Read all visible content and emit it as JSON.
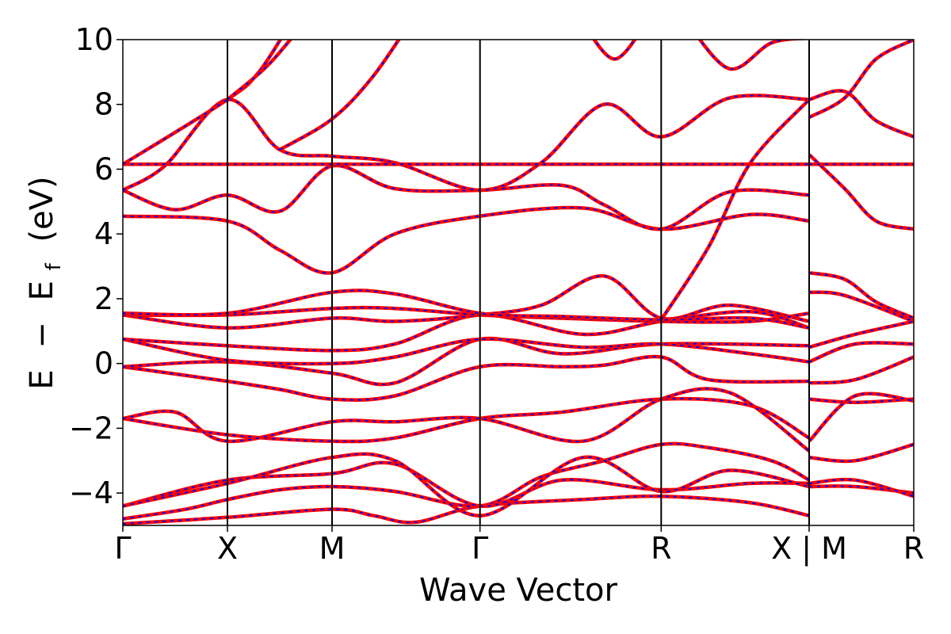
{
  "chart_data": {
    "type": "line",
    "xlabel": "Wave Vector",
    "ylabel_parts": {
      "E": "E",
      "minus": "−",
      "Ef_main": "E",
      "Ef_sub": "f",
      "unit": "(eV)"
    },
    "ylim": [
      -5,
      10
    ],
    "yticks": [
      -4,
      -2,
      0,
      2,
      4,
      6,
      8,
      10
    ],
    "ytick_labels": [
      "−4",
      "−2",
      "0",
      "2",
      "4",
      "6",
      "8",
      "10"
    ],
    "kpoints": [
      {
        "label": "Γ",
        "k": 0.0
      },
      {
        "label": "X",
        "k": 0.5
      },
      {
        "label": "M",
        "k": 1.0
      },
      {
        "label": "Γ",
        "k": 1.7071
      },
      {
        "label": "R",
        "k": 2.5731
      },
      {
        "label": "X|M",
        "k": 3.2802
      },
      {
        "label": "R",
        "k": 3.7802
      }
    ],
    "grid": false,
    "series_styles": [
      {
        "color": "#ff0000",
        "dash": "solid"
      },
      {
        "color": "#0000ff",
        "dash": "dashed"
      }
    ],
    "bands": [
      [
        [
          0,
          -4.95
        ],
        [
          0.5,
          -4.75
        ],
        [
          1.0,
          -4.5
        ],
        [
          1.2,
          -4.7
        ],
        [
          1.4,
          -4.9
        ],
        [
          1.7071,
          -4.4
        ],
        [
          2.2,
          -4.2
        ],
        [
          2.5731,
          -4.1
        ],
        [
          3.0,
          -4.3
        ],
        [
          3.2802,
          -4.7
        ]
      ],
      [
        [
          0,
          -4.8
        ],
        [
          0.3,
          -4.5
        ],
        [
          0.5,
          -4.2
        ],
        [
          0.75,
          -3.9
        ],
        [
          1.0,
          -3.8
        ],
        [
          1.3,
          -3.95
        ],
        [
          1.7071,
          -4.4
        ],
        [
          2.0,
          -3.5
        ],
        [
          2.3,
          -3.0
        ],
        [
          2.5731,
          -2.5
        ],
        [
          2.8,
          -2.6
        ],
        [
          3.1,
          -3.0
        ],
        [
          3.2802,
          -3.6
        ]
      ],
      [
        [
          0,
          -4.4
        ],
        [
          0.5,
          -3.6
        ],
        [
          1.0,
          -3.4
        ],
        [
          1.3,
          -3.1
        ],
        [
          1.7071,
          -4.4
        ],
        [
          2.1,
          -3.6
        ],
        [
          2.5731,
          -3.9
        ],
        [
          3.0,
          -3.7
        ],
        [
          3.2802,
          -3.7
        ]
      ],
      [
        [
          0,
          -4.4
        ],
        [
          0.5,
          -3.7
        ],
        [
          1.0,
          -2.9
        ],
        [
          1.3,
          -3.0
        ],
        [
          1.7071,
          -4.7
        ],
        [
          2.2,
          -2.9
        ],
        [
          2.5731,
          -3.95
        ],
        [
          2.9,
          -3.3
        ],
        [
          3.2802,
          -3.8
        ]
      ],
      [
        [
          0,
          -1.7
        ],
        [
          0.5,
          -2.2
        ],
        [
          1.0,
          -2.4
        ],
        [
          1.3,
          -2.3
        ],
        [
          1.7071,
          -1.7
        ],
        [
          2.1,
          -1.5
        ],
        [
          2.5731,
          -1.1
        ],
        [
          3.0,
          -1.3
        ],
        [
          3.2802,
          -2.3
        ]
      ],
      [
        [
          0,
          -1.7
        ],
        [
          0.25,
          -1.5
        ],
        [
          0.5,
          -2.4
        ],
        [
          1.0,
          -1.8
        ],
        [
          1.3,
          -1.8
        ],
        [
          1.7071,
          -1.7
        ],
        [
          2.2,
          -2.4
        ],
        [
          2.5731,
          -1.1
        ],
        [
          2.9,
          -0.9
        ],
        [
          3.2802,
          -2.7
        ]
      ],
      [
        [
          0,
          -0.1
        ],
        [
          0.5,
          -0.55
        ],
        [
          0.75,
          -0.8
        ],
        [
          1.0,
          -1.1
        ],
        [
          1.3,
          -1.0
        ],
        [
          1.7071,
          -0.1
        ],
        [
          2.1,
          -0.1
        ],
        [
          2.3,
          -0.05
        ],
        [
          2.5731,
          0.2
        ],
        [
          2.8,
          -0.5
        ],
        [
          3.2802,
          -0.55
        ]
      ],
      [
        [
          0,
          -0.1
        ],
        [
          0.5,
          0.05
        ],
        [
          1.0,
          -0.3
        ],
        [
          1.3,
          -0.6
        ],
        [
          1.7071,
          0.75
        ],
        [
          2.1,
          0.3
        ],
        [
          2.5731,
          0.6
        ],
        [
          3.2802,
          0.55
        ]
      ],
      [
        [
          0,
          0.75
        ],
        [
          0.5,
          0.1
        ],
        [
          1.0,
          0.0
        ],
        [
          1.3,
          0.2
        ],
        [
          1.7071,
          0.75
        ],
        [
          2.2,
          0.5
        ],
        [
          2.5731,
          0.6
        ],
        [
          3.0,
          0.3
        ],
        [
          3.2802,
          0.05
        ]
      ],
      [
        [
          0,
          0.75
        ],
        [
          0.5,
          0.55
        ],
        [
          1.0,
          0.4
        ],
        [
          1.3,
          0.6
        ],
        [
          1.7071,
          1.5
        ],
        [
          2.2,
          0.9
        ],
        [
          2.5731,
          1.3
        ],
        [
          3.0,
          1.6
        ],
        [
          3.2802,
          1.1
        ]
      ],
      [
        [
          0,
          1.5
        ],
        [
          0.5,
          1.1
        ],
        [
          1.0,
          1.4
        ],
        [
          1.3,
          1.3
        ],
        [
          1.7071,
          1.5
        ],
        [
          2.0,
          1.8
        ],
        [
          2.3,
          2.7
        ],
        [
          2.5731,
          1.4
        ],
        [
          2.9,
          1.8
        ],
        [
          3.2802,
          1.3
        ]
      ],
      [
        [
          0,
          1.5
        ],
        [
          0.5,
          1.5
        ],
        [
          1.0,
          1.7
        ],
        [
          1.3,
          1.7
        ],
        [
          1.7071,
          1.5
        ],
        [
          2.1,
          1.4
        ],
        [
          2.5731,
          1.3
        ],
        [
          3.0,
          1.3
        ],
        [
          3.2802,
          1.55
        ]
      ],
      [
        [
          0,
          1.55
        ],
        [
          0.5,
          1.55
        ],
        [
          1.0,
          2.2
        ],
        [
          1.3,
          2.15
        ],
        [
          1.7071,
          1.55
        ],
        [
          2.1,
          1.45
        ],
        [
          2.5731,
          1.35
        ],
        [
          3.0,
          1.4
        ],
        [
          3.2802,
          1.1
        ]
      ],
      [
        [
          0,
          4.55
        ],
        [
          0.5,
          4.4
        ],
        [
          0.75,
          3.5
        ],
        [
          1.0,
          2.8
        ],
        [
          1.3,
          4.0
        ],
        [
          1.7071,
          4.55
        ],
        [
          2.2,
          4.8
        ],
        [
          2.5731,
          4.15
        ],
        [
          3.0,
          4.6
        ],
        [
          3.2802,
          4.4
        ]
      ],
      [
        [
          0,
          5.35
        ],
        [
          0.25,
          4.75
        ],
        [
          0.5,
          5.2
        ],
        [
          0.75,
          4.7
        ],
        [
          1.0,
          6.1
        ],
        [
          1.3,
          5.4
        ],
        [
          1.7071,
          5.35
        ],
        [
          2.1,
          5.5
        ],
        [
          2.3,
          4.9
        ],
        [
          2.5731,
          4.15
        ],
        [
          2.9,
          5.3
        ],
        [
          3.2802,
          5.2
        ]
      ],
      [
        [
          0,
          5.35
        ],
        [
          0.2,
          6.1
        ],
        [
          0.5,
          8.15
        ],
        [
          0.75,
          6.6
        ],
        [
          1.0,
          6.4
        ],
        [
          1.3,
          6.2
        ],
        [
          1.7071,
          5.35
        ],
        [
          2.0,
          6.2
        ],
        [
          2.3,
          8.0
        ],
        [
          2.5731,
          7.0
        ],
        [
          2.9,
          8.2
        ],
        [
          3.2802,
          8.15
        ]
      ],
      [
        [
          0,
          6.15
        ],
        [
          0.5,
          6.15
        ],
        [
          1.0,
          6.15
        ],
        [
          1.7071,
          6.15
        ],
        [
          2.5731,
          6.15
        ],
        [
          3.2802,
          6.15
        ]
      ],
      [
        [
          0,
          6.15
        ],
        [
          0.5,
          8.15
        ],
        [
          0.65,
          9.0
        ],
        [
          0.8,
          10.5
        ]
      ],
      [
        [
          0.5,
          8.15
        ],
        [
          0.7,
          9.25
        ],
        [
          0.9,
          10.8
        ]
      ],
      [
        [
          0.75,
          6.6
        ],
        [
          1.0,
          7.55
        ],
        [
          1.2,
          8.9
        ],
        [
          1.4,
          10.8
        ]
      ],
      [
        [
          2.2,
          10.5
        ],
        [
          2.35,
          9.4
        ],
        [
          2.5,
          10.5
        ]
      ],
      [
        [
          2.5731,
          1.35
        ],
        [
          2.8,
          3.6
        ],
        [
          3.0,
          6.2
        ],
        [
          3.2802,
          8.15
        ]
      ],
      [
        [
          2.7,
          10.5
        ],
        [
          2.9,
          9.1
        ],
        [
          3.1,
          9.9
        ],
        [
          3.2802,
          10.05
        ]
      ],
      [
        [
          3.2802,
          2.8
        ],
        [
          3.45,
          2.6
        ],
        [
          3.6,
          1.9
        ],
        [
          3.7802,
          1.4
        ]
      ],
      [
        [
          3.2802,
          2.2
        ],
        [
          3.45,
          2.1
        ],
        [
          3.7802,
          1.3
        ]
      ],
      [
        [
          3.2802,
          6.45
        ],
        [
          3.45,
          5.4
        ],
        [
          3.6,
          4.4
        ],
        [
          3.7802,
          4.15
        ]
      ],
      [
        [
          3.2802,
          7.6
        ],
        [
          3.45,
          8.2
        ],
        [
          3.6,
          9.4
        ],
        [
          3.7802,
          10.0
        ]
      ],
      [
        [
          3.2802,
          8.15
        ],
        [
          3.45,
          8.4
        ],
        [
          3.6,
          7.5
        ],
        [
          3.7802,
          7.0
        ]
      ],
      [
        [
          3.2802,
          6.15
        ],
        [
          3.7802,
          6.15
        ]
      ],
      [
        [
          3.2802,
          0.5
        ],
        [
          3.5,
          0.9
        ],
        [
          3.7802,
          1.3
        ]
      ],
      [
        [
          3.2802,
          0.05
        ],
        [
          3.5,
          0.6
        ],
        [
          3.7802,
          0.6
        ]
      ],
      [
        [
          3.2802,
          -0.6
        ],
        [
          3.5,
          -0.5
        ],
        [
          3.7802,
          0.2
        ]
      ],
      [
        [
          3.2802,
          -1.1
        ],
        [
          3.5,
          -1.2
        ],
        [
          3.7802,
          -1.1
        ]
      ],
      [
        [
          3.2802,
          -2.4
        ],
        [
          3.5,
          -1.0
        ],
        [
          3.7802,
          -1.15
        ]
      ],
      [
        [
          3.2802,
          -2.9
        ],
        [
          3.5,
          -3.0
        ],
        [
          3.7802,
          -2.5
        ]
      ],
      [
        [
          3.2802,
          -3.8
        ],
        [
          3.5,
          -3.8
        ],
        [
          3.7802,
          -4.0
        ]
      ],
      [
        [
          3.2802,
          -3.7
        ],
        [
          3.5,
          -3.6
        ],
        [
          3.7802,
          -4.1
        ]
      ]
    ]
  }
}
